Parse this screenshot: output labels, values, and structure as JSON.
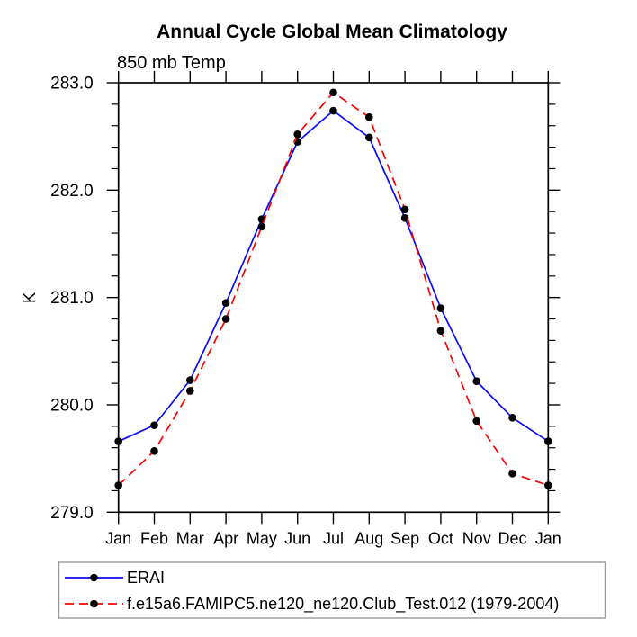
{
  "chart_data": {
    "type": "line",
    "title": "Annual Cycle Global Mean Climatology",
    "subtitle": "850 mb Temp",
    "ylabel": "K",
    "categories": [
      "Jan",
      "Feb",
      "Mar",
      "Apr",
      "May",
      "Jun",
      "Jul",
      "Aug",
      "Sep",
      "Oct",
      "Nov",
      "Dec",
      "Jan"
    ],
    "ylim": [
      279.0,
      283.0
    ],
    "ytick_major": [
      279.0,
      280.0,
      281.0,
      282.0,
      283.0
    ],
    "ytick_labels": [
      "279.0",
      "280.0",
      "281.0",
      "282.0",
      "283.0"
    ],
    "ytick_minor_step": 0.2,
    "grid": false,
    "marker_color": "#000000",
    "axis_color": "#000000",
    "series": [
      {
        "name": "ERAI",
        "color": "#0a0aff",
        "line_style": "solid",
        "marker": "circle",
        "values": [
          279.66,
          279.81,
          280.23,
          280.95,
          281.73,
          282.45,
          282.74,
          282.49,
          281.74,
          280.9,
          280.22,
          279.88,
          279.66
        ]
      },
      {
        "name": "f.e15a6.FAMIPC5.ne120_ne120.Club_Test.012 (1979-2004)",
        "color": "#ff0000",
        "line_style": "dashed",
        "marker": "circle",
        "values": [
          279.25,
          279.57,
          280.13,
          280.8,
          281.66,
          282.52,
          282.91,
          282.68,
          281.82,
          280.69,
          279.85,
          279.36,
          279.25
        ]
      }
    ],
    "legend": {
      "position": "bottom-left",
      "border_color": "#999999"
    }
  }
}
